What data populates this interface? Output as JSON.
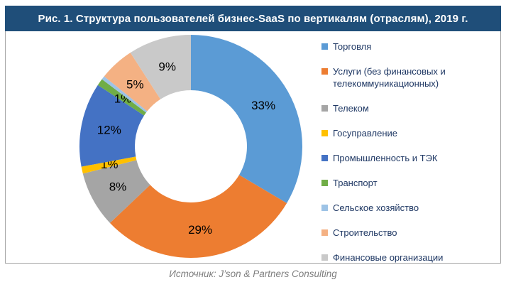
{
  "figure": {
    "title": "Рис. 1. Структура пользователей бизнес-SaaS по вертикалям (отраслям), 2019 г.",
    "source": "Источник: J’son & Partners Consulting",
    "colors": {
      "title_bar_bg": "#1F4E79",
      "title_text": "#FFFFFF",
      "figure_border": "#A6A6A6",
      "legend_text": "#1F3864",
      "slice_label_text": "#000000",
      "source_text": "#7F7F7F"
    }
  },
  "chart_data": {
    "type": "pie",
    "subtype": "donut",
    "title": "Структура пользователей бизнес-SaaS по вертикалям (отраслям), 2019 г.",
    "legend_position": "right",
    "hole_ratio": 0.5,
    "start_angle_deg": 0,
    "direction": "clockwise",
    "series": [
      {
        "label": "Торговля",
        "value": 33,
        "display": "33%",
        "label_shown": true,
        "color": "#5B9BD5"
      },
      {
        "label": "Услуги (без финансовых и телекоммуникационных)",
        "value": 29,
        "display": "29%",
        "label_shown": true,
        "color": "#ED7D31"
      },
      {
        "label": "Телеком",
        "value": 8,
        "display": "8%",
        "label_shown": true,
        "color": "#A5A5A5"
      },
      {
        "label": "Госуправление",
        "value": 1,
        "display": "1%",
        "label_shown": true,
        "color": "#FFC000"
      },
      {
        "label": "Промышленность и ТЭК",
        "value": 12,
        "display": "12%",
        "label_shown": true,
        "color": "#4472C4"
      },
      {
        "label": "Транспорт",
        "value": 1,
        "display": "1%",
        "label_shown": true,
        "color": "#70AD47"
      },
      {
        "label": "Сельское хозяйство",
        "value": 0.5,
        "display": "",
        "label_shown": false,
        "color": "#9DC3E6"
      },
      {
        "label": "Строительство",
        "value": 5,
        "display": "5%",
        "label_shown": true,
        "color": "#F4B183"
      },
      {
        "label": "Финансовые организации",
        "value": 9,
        "display": "9%",
        "label_shown": true,
        "color": "#C9C9C9"
      }
    ]
  }
}
